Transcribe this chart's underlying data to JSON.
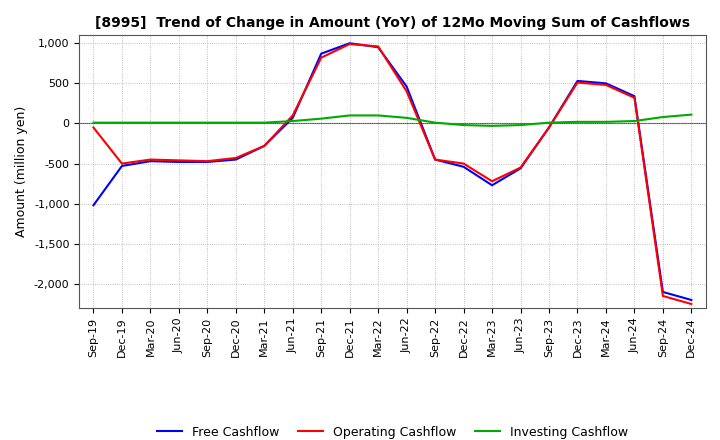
{
  "title": "[8995]  Trend of Change in Amount (YoY) of 12Mo Moving Sum of Cashflows",
  "ylabel": "Amount (million yen)",
  "x_labels": [
    "Sep-19",
    "Dec-19",
    "Mar-20",
    "Jun-20",
    "Sep-20",
    "Dec-20",
    "Mar-21",
    "Jun-21",
    "Sep-21",
    "Dec-21",
    "Mar-22",
    "Jun-22",
    "Sep-22",
    "Dec-22",
    "Mar-23",
    "Jun-23",
    "Sep-23",
    "Dec-23",
    "Mar-24",
    "Jun-24",
    "Sep-24",
    "Dec-24"
  ],
  "operating": [
    -50,
    -500,
    -450,
    -460,
    -470,
    -430,
    -280,
    100,
    820,
    990,
    960,
    400,
    -450,
    -500,
    -720,
    -550,
    -50,
    510,
    480,
    320,
    -2150,
    -2250
  ],
  "investing": [
    10,
    10,
    10,
    10,
    10,
    10,
    10,
    30,
    60,
    100,
    100,
    70,
    10,
    -20,
    -30,
    -20,
    10,
    20,
    20,
    30,
    80,
    110
  ],
  "free": [
    -1020,
    -530,
    -470,
    -480,
    -480,
    -450,
    -280,
    70,
    870,
    1000,
    950,
    460,
    -450,
    -540,
    -770,
    -560,
    -50,
    530,
    500,
    340,
    -2100,
    -2200
  ],
  "ylim": [
    -2300,
    1100
  ],
  "yticks": [
    1000,
    500,
    0,
    -500,
    -1000,
    -1500,
    -2000
  ],
  "operating_color": "#ff0000",
  "investing_color": "#00aa00",
  "free_color": "#0000ff",
  "legend_labels": [
    "Operating Cashflow",
    "Investing Cashflow",
    "Free Cashflow"
  ],
  "grid_color": "#aaaaaa",
  "background_color": "#ffffff",
  "title_fontsize": 10,
  "axis_fontsize": 8,
  "ylabel_fontsize": 9
}
